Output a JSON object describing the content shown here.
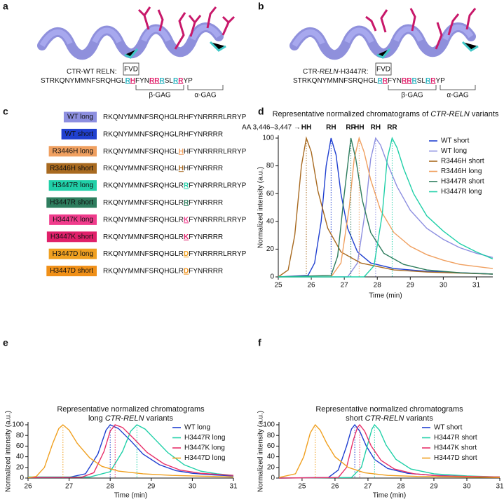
{
  "panels": {
    "a": {
      "letter": "a",
      "label": [
        {
          "text": "CTR-WT RELN:"
        }
      ],
      "fvd": "FVD",
      "sequence": [
        {
          "text": "STRKQNYMMNFSRQHGL"
        },
        {
          "text": "R",
          "color": "#2bb3c0"
        },
        {
          "text": "H",
          "color": "#e0206a"
        },
        {
          "text": "FYN"
        },
        {
          "text": "R",
          "color": "#e0206a"
        },
        {
          "text": "R",
          "color": "#e0206a"
        },
        {
          "text": "R",
          "color": "#2bb3c0"
        },
        {
          "text": "SL"
        },
        {
          "text": "R",
          "color": "#2bb3c0"
        },
        {
          "text": "R",
          "color": "#e0206a"
        },
        {
          "text": "YP"
        }
      ],
      "beta": "β-GAG",
      "alpha": "α-GAG"
    },
    "b": {
      "letter": "b",
      "label": [
        {
          "text": "CTR-"
        },
        {
          "text": "RELN",
          "italic": true
        },
        {
          "text": "-H3447R:"
        }
      ],
      "fvd": "FVD",
      "sequence": [
        {
          "text": "STRKQNYMMNFSRQHGL"
        },
        {
          "text": "R",
          "color": "#2bb3c0"
        },
        {
          "text": "R",
          "color": "#e0206a"
        },
        {
          "text": "FYN"
        },
        {
          "text": "R",
          "color": "#e0206a"
        },
        {
          "text": "R",
          "color": "#e0206a"
        },
        {
          "text": "R",
          "color": "#2bb3c0"
        },
        {
          "text": "SL"
        },
        {
          "text": "R",
          "color": "#2bb3c0"
        },
        {
          "text": "R",
          "color": "#e0206a"
        },
        {
          "text": "YP"
        }
      ],
      "beta": "β-GAG",
      "alpha": "α-GAG"
    },
    "c": {
      "letter": "c",
      "rows": [
        {
          "label": "WT long",
          "color": "#8d8fe0",
          "sequence": [
            {
              "text": "RKQNYMMNFSRQHGLRHFYNRRRRLRRYP"
            }
          ]
        },
        {
          "label": "WT short",
          "color": "#2040d0",
          "sequence": [
            {
              "text": "RKQNYMMNFSRQHGLRHFYNRRRR"
            }
          ]
        },
        {
          "label": "R3446H long",
          "color": "#f0a060",
          "sequence": [
            {
              "text": "RKQNYMMNFSRQHGL"
            },
            {
              "text": "H",
              "color": "#f0a060"
            },
            {
              "text": "HFYNRRRRLRRYP"
            }
          ]
        },
        {
          "label": "R3446H short",
          "color": "#a86a20",
          "sequence": [
            {
              "text": "RKQNYMMNFSRQHGL"
            },
            {
              "text": "H",
              "color": "#a86a20"
            },
            {
              "text": "HFYNRRRR"
            }
          ]
        },
        {
          "label": "H3447R long",
          "color": "#20d0a8",
          "sequence": [
            {
              "text": "RKQNYMMNFSRQHGLR"
            },
            {
              "text": "R",
              "color": "#20d0a8"
            },
            {
              "text": "FYNRRRRLRRYP"
            }
          ]
        },
        {
          "label": "H3447R short",
          "color": "#2e7d5e",
          "sequence": [
            {
              "text": "RKQNYMMNFSRQHGLR"
            },
            {
              "text": "R",
              "color": "#2e7d5e"
            },
            {
              "text": "FYNRRRR"
            }
          ]
        },
        {
          "label": "H3447K long",
          "color": "#f03c8c",
          "sequence": [
            {
              "text": "RKQNYMMNFSRQHGLR"
            },
            {
              "text": "K",
              "color": "#f03c8c"
            },
            {
              "text": "FYNRRRRLRRYP"
            }
          ]
        },
        {
          "label": "H3447K short",
          "color": "#e0206a",
          "sequence": [
            {
              "text": "RKQNYMMNFSRQHGLR"
            },
            {
              "text": "K",
              "color": "#e0206a"
            },
            {
              "text": "FYNRRRR"
            }
          ]
        },
        {
          "label": "H3447D long",
          "color": "#f0a020",
          "sequence": [
            {
              "text": "RKQNYMMNFSRQHGLR"
            },
            {
              "text": "D",
              "color": "#f0a020"
            },
            {
              "text": "FYNRRRRLRRYP"
            }
          ]
        },
        {
          "label": "H3447D short",
          "color": "#f09018",
          "sequence": [
            {
              "text": "RKQNYMMNFSRQHGLR"
            },
            {
              "text": "D",
              "color": "#f09018"
            },
            {
              "text": "FYNRRRR"
            }
          ]
        }
      ]
    }
  },
  "chart_data": [
    {
      "type": "line",
      "letter": "d",
      "title": [
        [
          {
            "text": "Representative normalized chromatograms of "
          },
          {
            "text": "CTR-RELN",
            "italic": true
          },
          {
            "text": " variants"
          }
        ]
      ],
      "annotation": "AA 3,446–3,447 →",
      "x_label": "Time (min)",
      "y_label": "Normalized intensity (a.u.)",
      "xlim": [
        25,
        31.5
      ],
      "xticks": [
        25,
        26,
        27,
        28,
        29,
        30,
        31
      ],
      "ylim": [
        0,
        100
      ],
      "yticks": [
        0,
        20,
        40,
        60,
        80,
        100
      ],
      "legend": "upper right",
      "series": [
        {
          "name": "WT short",
          "color": "#2040d0",
          "peak": 26.6,
          "peak_label": "RH",
          "x": [
            25,
            25.9,
            26.1,
            26.3,
            26.45,
            26.6,
            26.75,
            26.9,
            27.1,
            27.4,
            27.8,
            28.5,
            29.5,
            31.5
          ],
          "values": [
            0,
            1,
            10,
            40,
            80,
            100,
            88,
            60,
            35,
            18,
            10,
            6,
            4,
            2
          ]
        },
        {
          "name": "WT long",
          "color": "#8d8fe0",
          "peak": 27.95,
          "peak_label": "RH",
          "x": [
            25,
            27.1,
            27.4,
            27.65,
            27.8,
            27.95,
            28.1,
            28.3,
            28.6,
            29,
            29.5,
            30,
            30.5,
            31,
            31.5
          ],
          "values": [
            0,
            0,
            10,
            50,
            85,
            100,
            95,
            82,
            65,
            48,
            35,
            27,
            21,
            17,
            14
          ]
        },
        {
          "name": "R3446H short",
          "color": "#a86a20",
          "peak": 25.85,
          "peak_label": "HH",
          "x": [
            25,
            25.3,
            25.5,
            25.7,
            25.85,
            26,
            26.2,
            26.5,
            26.9,
            27.5,
            28.5,
            29.5,
            31.5
          ],
          "values": [
            0,
            5,
            30,
            80,
            100,
            90,
            62,
            35,
            18,
            10,
            5,
            3.5,
            2
          ]
        },
        {
          "name": "R3446H long",
          "color": "#f0a060",
          "peak": 27.45,
          "peak_label": "HH",
          "x": [
            25,
            26.6,
            26.9,
            27.15,
            27.3,
            27.45,
            27.6,
            27.8,
            28.1,
            28.5,
            29,
            29.5,
            30,
            30.5,
            31.5
          ],
          "values": [
            0,
            0,
            10,
            50,
            85,
            100,
            90,
            70,
            48,
            32,
            22,
            16,
            12,
            9,
            6
          ]
        },
        {
          "name": "H3447R short",
          "color": "#2e7d5e",
          "peak": 27.2,
          "peak_label": "RR",
          "x": [
            25,
            26.6,
            26.8,
            27,
            27.2,
            27.35,
            27.55,
            27.8,
            28.2,
            28.8,
            29.5,
            30.5,
            31.5
          ],
          "values": [
            0,
            1,
            15,
            60,
            100,
            85,
            55,
            32,
            17,
            9,
            5,
            3,
            2
          ]
        },
        {
          "name": "H3447R long",
          "color": "#20d0a8",
          "peak": 28.45,
          "peak_label": "RR",
          "x": [
            25,
            27.6,
            27.9,
            28.15,
            28.3,
            28.45,
            28.6,
            28.8,
            29.1,
            29.5,
            30,
            30.5,
            31,
            31.5
          ],
          "values": [
            0,
            0,
            8,
            45,
            85,
            100,
            93,
            78,
            60,
            44,
            33,
            24,
            18,
            13
          ]
        }
      ]
    },
    {
      "type": "line",
      "letter": "e",
      "title": [
        [
          {
            "text": "Representative normalized chromatograms"
          }
        ],
        [
          {
            "text": "long "
          },
          {
            "text": "CTR-RELN",
            "italic": true
          },
          {
            "text": " variants"
          }
        ]
      ],
      "x_label": "Time (min)",
      "y_label": "Normalized intensity (a.u.)",
      "xlim": [
        26,
        31
      ],
      "xticks": [
        26,
        27,
        28,
        29,
        30,
        31
      ],
      "ylim": [
        0,
        100
      ],
      "yticks": [
        0,
        20,
        40,
        60,
        80,
        100
      ],
      "legend": "upper right",
      "series": [
        {
          "name": "WT long",
          "color": "#2040d0",
          "peak": 28,
          "x": [
            26,
            27,
            27.4,
            27.7,
            27.9,
            28,
            28.2,
            28.5,
            28.8,
            29.2,
            29.6,
            30,
            30.5,
            31
          ],
          "values": [
            1,
            1.5,
            8,
            45,
            90,
            100,
            93,
            70,
            45,
            25,
            14,
            9,
            6,
            4
          ]
        },
        {
          "name": "H3447R long",
          "color": "#20d0a8",
          "peak": 28.65,
          "x": [
            26,
            27.5,
            28,
            28.3,
            28.5,
            28.65,
            28.85,
            29.1,
            29.4,
            29.8,
            30.2,
            30.6,
            31
          ],
          "values": [
            2,
            2,
            12,
            50,
            88,
            100,
            92,
            72,
            48,
            25,
            13,
            8,
            5
          ]
        },
        {
          "name": "H3447K long",
          "color": "#e8306a",
          "peak": 28.12,
          "x": [
            26,
            27.3,
            27.6,
            27.85,
            28,
            28.12,
            28.3,
            28.6,
            28.9,
            29.3,
            29.7,
            30.2,
            31
          ],
          "values": [
            1,
            1.5,
            10,
            50,
            88,
            100,
            95,
            72,
            48,
            27,
            15,
            9,
            5
          ]
        },
        {
          "name": "H3447D long",
          "color": "#f0a020",
          "peak": 26.85,
          "x": [
            26,
            26.2,
            26.4,
            26.6,
            26.75,
            26.85,
            27,
            27.2,
            27.5,
            27.8,
            28.2,
            28.8,
            29.5,
            30.5,
            31
          ],
          "values": [
            0.5,
            3,
            20,
            65,
            93,
            100,
            90,
            65,
            38,
            22,
            13,
            8,
            5,
            3,
            2
          ]
        }
      ]
    },
    {
      "type": "line",
      "letter": "f",
      "title": [
        [
          {
            "text": "Representative normalized chromatograms"
          }
        ],
        [
          {
            "text": "short "
          },
          {
            "text": "CTR-RELN",
            "italic": true
          },
          {
            "text": " variants"
          }
        ]
      ],
      "x_label": "Time (min)",
      "y_label": "Normalized intensity (a.u.)",
      "xlim": [
        24.3,
        31
      ],
      "xticks": [
        25,
        26,
        27,
        28,
        29,
        30,
        31
      ],
      "ylim": [
        0,
        100
      ],
      "yticks": [
        0,
        20,
        40,
        60,
        80,
        100
      ],
      "legend": "upper right",
      "series": [
        {
          "name": "WT short",
          "color": "#2040d0",
          "peak": 26.6,
          "x": [
            24.3,
            25.8,
            26.1,
            26.35,
            26.5,
            26.6,
            26.75,
            26.95,
            27.2,
            27.6,
            28.2,
            29,
            30,
            31
          ],
          "values": [
            0,
            1,
            15,
            60,
            92,
            100,
            88,
            60,
            35,
            18,
            9,
            5,
            3,
            2
          ]
        },
        {
          "name": "H3447R short",
          "color": "#20d0a8",
          "peak": 27.2,
          "x": [
            24.3,
            26.5,
            26.8,
            27,
            27.12,
            27.2,
            27.35,
            27.55,
            27.85,
            28.3,
            29,
            30,
            31
          ],
          "values": [
            0,
            1,
            20,
            65,
            92,
            100,
            90,
            62,
            35,
            17,
            8,
            4,
            2
          ]
        },
        {
          "name": "H3447K short",
          "color": "#e8306a",
          "peak": 26.75,
          "x": [
            24.3,
            26.1,
            26.35,
            26.55,
            26.68,
            26.75,
            26.9,
            27.1,
            27.4,
            27.8,
            28.4,
            29.2,
            31
          ],
          "values": [
            0,
            1,
            20,
            70,
            95,
            100,
            88,
            60,
            33,
            17,
            8,
            4,
            2
          ]
        },
        {
          "name": "H3447D short",
          "color": "#f0a020",
          "peak": 25.4,
          "x": [
            24.3,
            24.8,
            25.05,
            25.25,
            25.4,
            25.55,
            25.75,
            26,
            26.4,
            26.9,
            27.6,
            28.5,
            31
          ],
          "values": [
            1,
            8,
            40,
            85,
            100,
            90,
            65,
            40,
            20,
            10,
            5,
            3,
            1
          ]
        }
      ]
    }
  ]
}
